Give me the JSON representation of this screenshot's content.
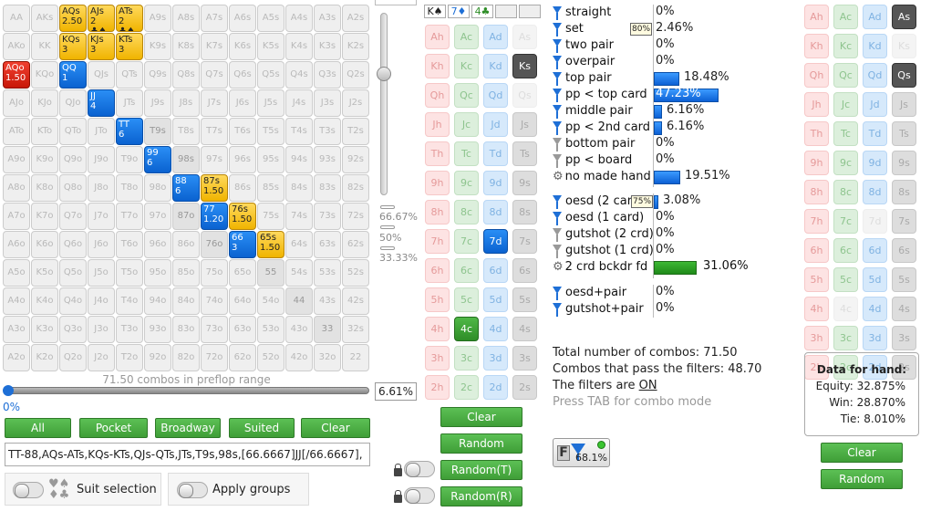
{
  "grid": {
    "labels": [
      [
        "AA",
        "AKs",
        "AQs",
        "AJs",
        "ATs",
        "A9s",
        "A8s",
        "A7s",
        "A6s",
        "A5s",
        "A4s",
        "A3s",
        "A2s"
      ],
      [
        "AKo",
        "KK",
        "KQs",
        "KJs",
        "KTs",
        "K9s",
        "K8s",
        "K7s",
        "K6s",
        "K5s",
        "K4s",
        "K3s",
        "K2s"
      ],
      [
        "AQo",
        "KQo",
        "QQ",
        "QJs",
        "QTs",
        "Q9s",
        "Q8s",
        "Q7s",
        "Q6s",
        "Q5s",
        "Q4s",
        "Q3s",
        "Q2s"
      ],
      [
        "AJo",
        "KJo",
        "QJo",
        "JJ",
        "JTs",
        "J9s",
        "J8s",
        "J7s",
        "J6s",
        "J5s",
        "J4s",
        "J3s",
        "J2s"
      ],
      [
        "ATo",
        "KTo",
        "QTo",
        "JTo",
        "TT",
        "T9s",
        "T8s",
        "T7s",
        "T6s",
        "T5s",
        "T4s",
        "T3s",
        "T2s"
      ],
      [
        "A9o",
        "K9o",
        "Q9o",
        "J9o",
        "T9o",
        "99",
        "98s",
        "97s",
        "96s",
        "95s",
        "94s",
        "93s",
        "92s"
      ],
      [
        "A8o",
        "K8o",
        "Q8o",
        "J8o",
        "T8o",
        "98o",
        "88",
        "87s",
        "86s",
        "85s",
        "84s",
        "83s",
        "82s"
      ],
      [
        "A7o",
        "K7o",
        "Q7o",
        "J7o",
        "T7o",
        "97o",
        "87o",
        "77",
        "76s",
        "75s",
        "74s",
        "73s",
        "72s"
      ],
      [
        "A6o",
        "K6o",
        "Q6o",
        "J6o",
        "T6o",
        "96o",
        "86o",
        "76o",
        "66",
        "65s",
        "64s",
        "63s",
        "62s"
      ],
      [
        "A5o",
        "K5o",
        "Q5o",
        "J5o",
        "T5o",
        "95o",
        "85o",
        "75o",
        "65o",
        "55",
        "54s",
        "53s",
        "52s"
      ],
      [
        "A4o",
        "K4o",
        "Q4o",
        "J4o",
        "T4o",
        "94o",
        "84o",
        "74o",
        "64o",
        "54o",
        "44",
        "43s",
        "42s"
      ],
      [
        "A3o",
        "K3o",
        "Q3o",
        "J3o",
        "T3o",
        "93o",
        "83o",
        "73o",
        "63o",
        "53o",
        "43o",
        "33",
        "32s"
      ],
      [
        "A2o",
        "K2o",
        "Q2o",
        "J2o",
        "T2o",
        "92o",
        "82o",
        "72o",
        "62o",
        "52o",
        "42o",
        "32o",
        "22"
      ]
    ],
    "highlight": [
      {
        "r": 0,
        "c": 2,
        "s": "y",
        "w": "2.50"
      },
      {
        "r": 0,
        "c": 3,
        "s": "y",
        "w": "2 ♣♠"
      },
      {
        "r": 0,
        "c": 4,
        "s": "y",
        "w": "2 ♣♠"
      },
      {
        "r": 1,
        "c": 2,
        "s": "y",
        "w": "3"
      },
      {
        "r": 1,
        "c": 3,
        "s": "y",
        "w": "3"
      },
      {
        "r": 1,
        "c": 4,
        "s": "y",
        "w": "3"
      },
      {
        "r": 2,
        "c": 0,
        "s": "r",
        "w": "1.50"
      },
      {
        "r": 2,
        "c": 2,
        "s": "b",
        "w": "1"
      },
      {
        "r": 3,
        "c": 3,
        "s": "b",
        "w": "4"
      },
      {
        "r": 4,
        "c": 4,
        "s": "b",
        "w": "6"
      },
      {
        "r": 5,
        "c": 5,
        "s": "b",
        "w": "6"
      },
      {
        "r": 6,
        "c": 6,
        "s": "b",
        "w": "6"
      },
      {
        "r": 6,
        "c": 7,
        "s": "y",
        "w": "1.50"
      },
      {
        "r": 7,
        "c": 7,
        "s": "b",
        "w": "1.20"
      },
      {
        "r": 7,
        "c": 8,
        "s": "y",
        "w": "1.50"
      },
      {
        "r": 8,
        "c": 8,
        "s": "b",
        "w": "3"
      },
      {
        "r": 8,
        "c": 9,
        "s": "y",
        "w": "1.50"
      }
    ],
    "dimmed": [
      "T9s",
      "98s",
      "87o",
      "76o",
      "55",
      "44",
      "33"
    ]
  },
  "combos_label": "71.50 combos in preflop range",
  "range_pct_left": "0%",
  "range_pct_value": "6.61%",
  "slider_labels": [
    "66.67%",
    "50%",
    "33.33%"
  ],
  "buttons_left": [
    "All",
    "Pocket",
    "Broadway",
    "Suited",
    "Clear"
  ],
  "range_text": "TT-88,AQs-ATs,KQs-KTs,QJs-QTs,JTs,T9s,98s,[66.6667]JJ[/66.6667],",
  "suit_selection": "Suit selection",
  "apply_groups": "Apply groups",
  "board_cards": [
    "K♠",
    "7♦",
    "4♣",
    "",
    ""
  ],
  "deck_ranks": [
    "A",
    "K",
    "Q",
    "J",
    "T",
    "9",
    "8",
    "7",
    "6",
    "5",
    "4",
    "3",
    "2"
  ],
  "deck_suits": [
    "h",
    "c",
    "d",
    "s"
  ],
  "deck_special": {
    "Ks": "dark",
    "7d": "blue",
    "4c": "green",
    "As": "faint",
    "Qs": "faint"
  },
  "deck_buttons": [
    "Clear",
    "Random",
    "Random(T)",
    "Random(R)"
  ],
  "filters": [
    {
      "label": "straight",
      "pct": "0%",
      "bar": 0,
      "icon": "funnel"
    },
    {
      "label": "set",
      "pct": "2.46%",
      "bar": 0,
      "icon": "funnel",
      "badge": "80%"
    },
    {
      "label": "two pair",
      "pct": "0%",
      "bar": 0,
      "icon": "funnel"
    },
    {
      "label": "overpair",
      "pct": "0%",
      "bar": 0,
      "icon": "funnel"
    },
    {
      "label": "top pair",
      "pct": "18.48%",
      "bar": 18.48,
      "icon": "funnel"
    },
    {
      "label": "pp < top card",
      "pct": "47.23%",
      "bar": 47.23,
      "icon": "funnel"
    },
    {
      "label": "middle pair",
      "pct": "6.16%",
      "bar": 6.16,
      "icon": "funnel"
    },
    {
      "label": "pp < 2nd card",
      "pct": "6.16%",
      "bar": 6.16,
      "icon": "funnel"
    },
    {
      "label": "bottom pair",
      "pct": "0%",
      "bar": 0,
      "icon": "funnel-grey"
    },
    {
      "label": "pp < board",
      "pct": "0%",
      "bar": 0,
      "icon": "funnel-grey"
    },
    {
      "label": "no made hand",
      "pct": "19.51%",
      "bar": 19.51,
      "icon": "gear"
    }
  ],
  "draws": [
    {
      "label": "oesd (2 card",
      "pct": "3.08%",
      "bar": 3.08,
      "icon": "funnel",
      "badge": "75%"
    },
    {
      "label": "oesd (1 card)",
      "pct": "0%",
      "bar": 0,
      "icon": "funnel"
    },
    {
      "label": "gutshot (2 crd)",
      "pct": "0%",
      "bar": 0,
      "icon": "funnel-grey"
    },
    {
      "label": "gutshot (1 crd)",
      "pct": "0%",
      "bar": 0,
      "icon": "funnel-grey"
    },
    {
      "label": "2 crd bckdr fd",
      "pct": "31.06%",
      "bar": 31.06,
      "icon": "gear",
      "green": true
    }
  ],
  "combo_draws": [
    {
      "label": "oesd+pair",
      "pct": "0%",
      "icon": "funnel"
    },
    {
      "label": "gutshot+pair",
      "pct": "0%",
      "icon": "funnel"
    }
  ],
  "totals": {
    "total": "Total number of combos: 71.50",
    "pass": "Combos that pass the filters: 48.70",
    "filters_prefix": "The filters are ",
    "filters_state": "ON",
    "tab_hint": "Press TAB for combo mode"
  },
  "filter_badge": "68.1%",
  "right_special": {
    "As": "dark",
    "Ks": "faint",
    "Qs": "dark",
    "4c": "faint",
    "7d": "faint"
  },
  "hand_data": {
    "title": "Data for hand:",
    "equity": "Equity: 32.875%",
    "win": "Win: 28.870%",
    "tie": "Tie: 8.010%"
  },
  "right_buttons": [
    "Clear",
    "Random"
  ]
}
